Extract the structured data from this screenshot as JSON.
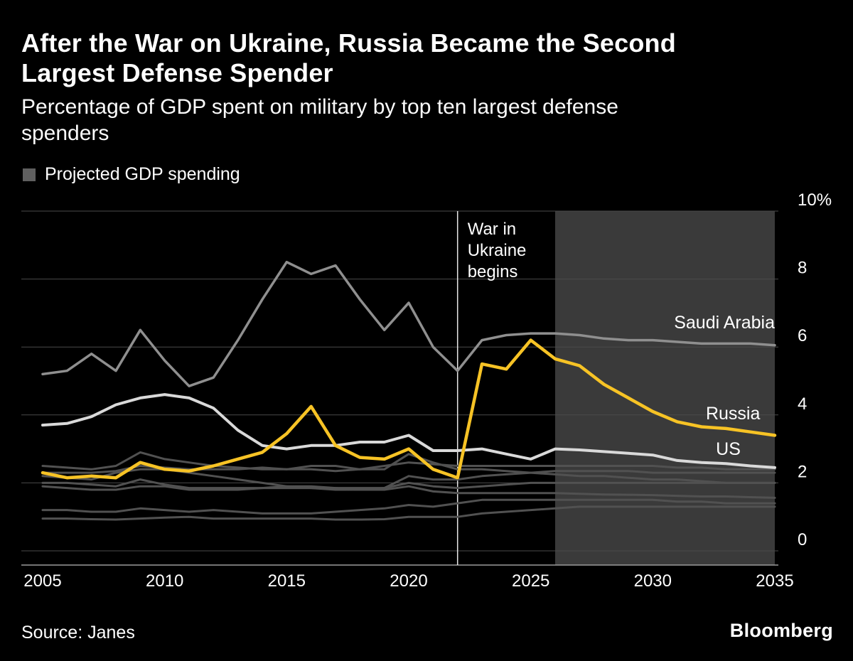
{
  "header": {
    "title_lines": [
      "After the War on Ukraine, Russia Became the Second",
      "Largest Defense Spender"
    ],
    "subtitle_lines": [
      "Percentage of GDP spent on military by top ten largest defense",
      "spenders"
    ]
  },
  "legend": {
    "projected_label": "Projected GDP spending"
  },
  "footer": {
    "source": "Source:  Janes",
    "brand": "Bloomberg"
  },
  "chart_data": {
    "type": "line",
    "title": "After the War on Ukraine, Russia Became the Second Largest Defense Spender",
    "subtitle": "Percentage of GDP spent on military by top ten largest defense spenders",
    "x_range": [
      2005,
      2035
    ],
    "y_range": [
      0,
      10
    ],
    "x_ticks": [
      2005,
      2010,
      2015,
      2020,
      2025,
      2030,
      2035
    ],
    "y_ticks": [
      0,
      2,
      4,
      6,
      8,
      10
    ],
    "y_tick_labels": [
      "0",
      "2",
      "4",
      "6",
      "8",
      "10%"
    ],
    "grid": true,
    "legend_position": "top-left",
    "years": [
      2005,
      2006,
      2007,
      2008,
      2009,
      2010,
      2011,
      2012,
      2013,
      2014,
      2015,
      2016,
      2017,
      2018,
      2019,
      2020,
      2021,
      2022,
      2023,
      2024,
      2025,
      2026,
      2027,
      2028,
      2029,
      2030,
      2031,
      2032,
      2033,
      2034,
      2035
    ],
    "projection": {
      "start_year": 2026,
      "end_year": 2035,
      "label": "Projected GDP spending"
    },
    "event_line": {
      "year": 2022,
      "label_lines": [
        "War in",
        "Ukraine",
        "begins"
      ]
    },
    "colors": {
      "background": "#000000",
      "projection_shade": "#3a3a3a",
      "legend_swatch": "#5f5f5f",
      "gridline": "#4a4a4a",
      "axis_line": "#9a9a9a",
      "event_line": "#e8e8e8",
      "tick_label": "#ffffff",
      "label_text": "#ffffff"
    },
    "series": [
      {
        "id": "other-1",
        "name": "",
        "color": "#515151",
        "width": 3,
        "values": [
          0.95,
          0.95,
          0.93,
          0.92,
          0.95,
          0.98,
          1.0,
          0.95,
          0.95,
          0.95,
          0.95,
          0.95,
          0.92,
          0.92,
          0.93,
          1.0,
          1.0,
          1.0,
          1.1,
          1.15,
          1.2,
          1.25,
          1.3,
          1.3,
          1.3,
          1.3,
          1.3,
          1.3,
          1.3,
          1.3,
          1.3
        ]
      },
      {
        "id": "other-2",
        "name": "",
        "color": "#515151",
        "width": 3,
        "values": [
          1.2,
          1.2,
          1.15,
          1.15,
          1.25,
          1.2,
          1.15,
          1.2,
          1.15,
          1.1,
          1.1,
          1.1,
          1.15,
          1.2,
          1.25,
          1.35,
          1.3,
          1.4,
          1.5,
          1.5,
          1.5,
          1.5,
          1.5,
          1.5,
          1.5,
          1.5,
          1.45,
          1.45,
          1.4,
          1.4,
          1.4
        ]
      },
      {
        "id": "other-3",
        "name": "",
        "color": "#515151",
        "width": 3,
        "values": [
          1.9,
          1.85,
          1.8,
          1.8,
          1.9,
          1.9,
          1.8,
          1.8,
          1.8,
          1.85,
          1.85,
          1.85,
          1.8,
          1.8,
          1.85,
          2.0,
          1.9,
          1.85,
          1.9,
          1.95,
          2.0,
          2.0,
          2.0,
          2.0,
          2.0,
          2.0,
          2.0,
          2.0,
          2.0,
          2.0,
          2.0
        ]
      },
      {
        "id": "other-4",
        "name": "",
        "color": "#515151",
        "width": 3,
        "values": [
          2.0,
          2.0,
          1.95,
          1.9,
          2.1,
          1.95,
          1.85,
          1.85,
          1.85,
          1.85,
          1.9,
          1.9,
          1.85,
          1.8,
          1.8,
          1.9,
          1.75,
          1.7,
          1.7,
          1.7,
          1.7,
          1.7,
          1.68,
          1.66,
          1.65,
          1.64,
          1.62,
          1.6,
          1.6,
          1.58,
          1.56
        ]
      },
      {
        "id": "other-5",
        "name": "",
        "color": "#515151",
        "width": 3,
        "values": [
          2.2,
          2.15,
          2.1,
          2.3,
          2.4,
          2.4,
          2.3,
          2.2,
          2.1,
          2.0,
          1.9,
          1.85,
          1.85,
          1.85,
          1.85,
          2.2,
          2.1,
          2.1,
          2.2,
          2.25,
          2.3,
          2.35,
          2.35,
          2.35,
          2.35,
          2.3,
          2.3,
          2.3,
          2.3,
          2.3,
          2.3
        ]
      },
      {
        "id": "other-6",
        "name": "",
        "color": "#515151",
        "width": 3,
        "values": [
          2.3,
          2.3,
          2.3,
          2.35,
          2.5,
          2.45,
          2.4,
          2.4,
          2.4,
          2.45,
          2.4,
          2.4,
          2.35,
          2.4,
          2.5,
          2.6,
          2.55,
          2.5,
          2.5,
          2.5,
          2.5,
          2.5,
          2.5,
          2.5,
          2.5,
          2.5,
          2.45,
          2.45,
          2.4,
          2.4,
          2.4
        ]
      },
      {
        "id": "other-7",
        "name": "",
        "color": "#515151",
        "width": 3,
        "values": [
          2.5,
          2.45,
          2.4,
          2.5,
          2.9,
          2.7,
          2.6,
          2.5,
          2.45,
          2.4,
          2.4,
          2.5,
          2.5,
          2.4,
          2.4,
          2.85,
          2.6,
          2.4,
          2.4,
          2.35,
          2.3,
          2.25,
          2.2,
          2.2,
          2.15,
          2.1,
          2.1,
          2.05,
          2.0,
          2.0,
          2.0
        ]
      },
      {
        "id": "saudi-arabia",
        "name": "Saudi Arabia",
        "color": "#8f8f8f",
        "width": 3.5,
        "values": [
          5.2,
          5.3,
          5.8,
          5.3,
          6.5,
          5.6,
          4.85,
          5.1,
          6.2,
          7.4,
          8.5,
          8.15,
          8.4,
          7.4,
          6.5,
          7.3,
          6.0,
          5.3,
          6.2,
          6.35,
          6.4,
          6.4,
          6.35,
          6.25,
          6.2,
          6.2,
          6.15,
          6.1,
          6.1,
          6.1,
          6.05
        ]
      },
      {
        "id": "us",
        "name": "US",
        "color": "#d9d9d9",
        "width": 4,
        "values": [
          3.7,
          3.75,
          3.95,
          4.3,
          4.5,
          4.6,
          4.5,
          4.2,
          3.55,
          3.1,
          3.0,
          3.1,
          3.1,
          3.2,
          3.2,
          3.4,
          2.95,
          2.95,
          3.0,
          2.85,
          2.7,
          3.0,
          2.97,
          2.92,
          2.87,
          2.82,
          2.66,
          2.6,
          2.57,
          2.5,
          2.45
        ]
      },
      {
        "id": "russia",
        "name": "Russia",
        "color": "#f7c325",
        "width": 4.5,
        "values": [
          2.3,
          2.15,
          2.2,
          2.15,
          2.6,
          2.4,
          2.35,
          2.5,
          2.7,
          2.9,
          3.45,
          4.25,
          3.1,
          2.75,
          2.7,
          3.0,
          2.4,
          2.15,
          5.5,
          5.35,
          6.2,
          5.65,
          5.45,
          4.9,
          4.5,
          4.1,
          3.8,
          3.65,
          3.6,
          3.5,
          3.4
        ]
      }
    ],
    "series_labels": [
      {
        "id": "saudi-arabia",
        "text": "Saudi Arabia",
        "year": 2035,
        "value": 6.55
      },
      {
        "id": "russia",
        "text": "Russia",
        "year": 2034.4,
        "value": 3.87
      },
      {
        "id": "us",
        "text": "US",
        "year": 2033.6,
        "value": 2.82
      }
    ]
  }
}
